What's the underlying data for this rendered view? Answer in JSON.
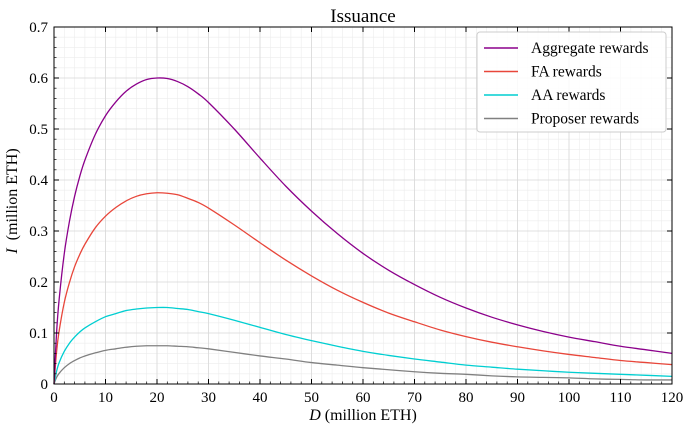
{
  "chart_data": {
    "type": "line",
    "title": "Issuance",
    "xlabel_var": "D",
    "xlabel_unit": " (million ETH)",
    "ylabel_var": "I",
    "ylabel_unit": "  (million ETH)",
    "xlim": [
      0,
      120
    ],
    "ylim": [
      0,
      0.7
    ],
    "xticks": [
      "0",
      "10",
      "20",
      "30",
      "40",
      "50",
      "60",
      "70",
      "80",
      "90",
      "100",
      "110",
      "120"
    ],
    "yticks": [
      "0",
      "0.1",
      "0.2",
      "0.3",
      "0.4",
      "0.5",
      "0.6",
      "0.7"
    ],
    "grid": true,
    "legend_position": "top-right",
    "x": [
      0,
      0.5,
      1,
      2,
      3,
      4,
      5,
      6,
      8,
      10,
      12,
      14,
      16,
      18,
      20,
      22,
      24,
      26,
      28,
      30,
      35,
      40,
      45,
      50,
      55,
      60,
      65,
      70,
      75,
      80,
      85,
      90,
      95,
      100,
      105,
      110,
      115,
      120
    ],
    "series": [
      {
        "name": "Aggregate rewards",
        "color": "#8b008b",
        "values": [
          0,
          0.101,
          0.166,
          0.256,
          0.319,
          0.368,
          0.407,
          0.439,
          0.489,
          0.526,
          0.553,
          0.574,
          0.588,
          0.597,
          0.6,
          0.599,
          0.593,
          0.583,
          0.569,
          0.552,
          0.5,
          0.443,
          0.388,
          0.339,
          0.295,
          0.256,
          0.223,
          0.195,
          0.17,
          0.149,
          0.131,
          0.116,
          0.103,
          0.092,
          0.083,
          0.074,
          0.067,
          0.06
        ]
      },
      {
        "name": "FA rewards",
        "color": "#e8463a",
        "values": [
          0,
          0.063,
          0.104,
          0.16,
          0.199,
          0.23,
          0.254,
          0.274,
          0.306,
          0.329,
          0.346,
          0.359,
          0.368,
          0.373,
          0.375,
          0.374,
          0.371,
          0.364,
          0.356,
          0.345,
          0.312,
          0.277,
          0.243,
          0.212,
          0.184,
          0.16,
          0.139,
          0.122,
          0.106,
          0.093,
          0.082,
          0.073,
          0.065,
          0.058,
          0.052,
          0.046,
          0.042,
          0.038
        ]
      },
      {
        "name": "AA rewards",
        "color": "#00ced1",
        "values": [
          0,
          0.025,
          0.042,
          0.064,
          0.08,
          0.092,
          0.102,
          0.11,
          0.122,
          0.132,
          0.138,
          0.144,
          0.147,
          0.149,
          0.15,
          0.15,
          0.148,
          0.146,
          0.142,
          0.138,
          0.125,
          0.111,
          0.097,
          0.085,
          0.074,
          0.064,
          0.056,
          0.049,
          0.043,
          0.037,
          0.033,
          0.029,
          0.026,
          0.023,
          0.021,
          0.019,
          0.017,
          0.015
        ]
      },
      {
        "name": "Proposer rewards",
        "color": "#808080",
        "values": [
          0,
          0.013,
          0.021,
          0.032,
          0.04,
          0.046,
          0.051,
          0.055,
          0.061,
          0.066,
          0.069,
          0.072,
          0.074,
          0.075,
          0.075,
          0.075,
          0.074,
          0.073,
          0.071,
          0.069,
          0.062,
          0.055,
          0.049,
          0.042,
          0.037,
          0.032,
          0.028,
          0.024,
          0.021,
          0.019,
          0.016,
          0.014,
          0.013,
          0.012,
          0.01,
          0.009,
          0.008,
          0.008
        ]
      }
    ]
  }
}
